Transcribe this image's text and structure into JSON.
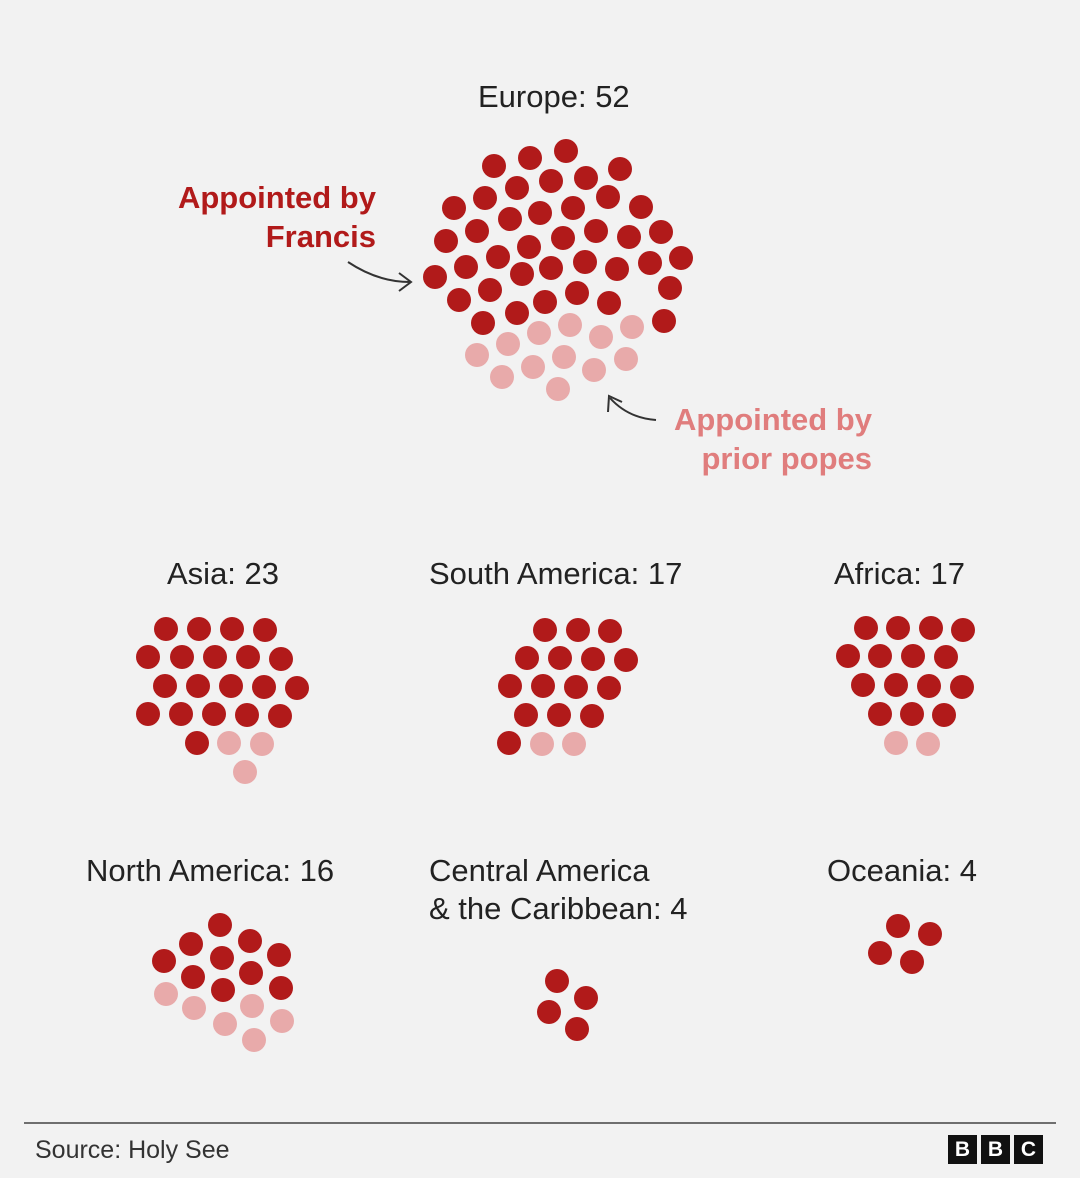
{
  "chart_data": {
    "type": "dot-cluster",
    "colors": {
      "francis": "#b11a1a",
      "prior": "#e8aaaa",
      "annot_francis": "#b11a1a",
      "annot_prior": "#e07d7d"
    },
    "series": [
      {
        "key": "francis",
        "name": "Appointed by Francis"
      },
      {
        "key": "prior",
        "name": "Appointed by prior popes"
      }
    ],
    "regions": [
      {
        "id": "europe",
        "label": "Europe: 52",
        "total": 52,
        "francis": 39,
        "prior": 13
      },
      {
        "id": "asia",
        "label": "Asia: 23",
        "total": 23,
        "francis": 20,
        "prior": 3
      },
      {
        "id": "south-america",
        "label": "South America: 17",
        "total": 17,
        "francis": 15,
        "prior": 2
      },
      {
        "id": "africa",
        "label": "Africa: 17",
        "total": 17,
        "francis": 15,
        "prior": 2
      },
      {
        "id": "north-america",
        "label": "North America: 16",
        "total": 16,
        "francis": 10,
        "prior": 6
      },
      {
        "id": "central-america",
        "label": "Central America\n& the Caribbean: 4",
        "total": 4,
        "francis": 4,
        "prior": 0
      },
      {
        "id": "oceania",
        "label": "Oceania: 4",
        "total": 4,
        "francis": 4,
        "prior": 0
      }
    ],
    "annotations": {
      "francis": "Appointed by\nFrancis",
      "prior": "Appointed by\nprior popes"
    }
  },
  "footer": {
    "source": "Source: Holy See",
    "logo_letters": [
      "B",
      "B",
      "C"
    ]
  }
}
